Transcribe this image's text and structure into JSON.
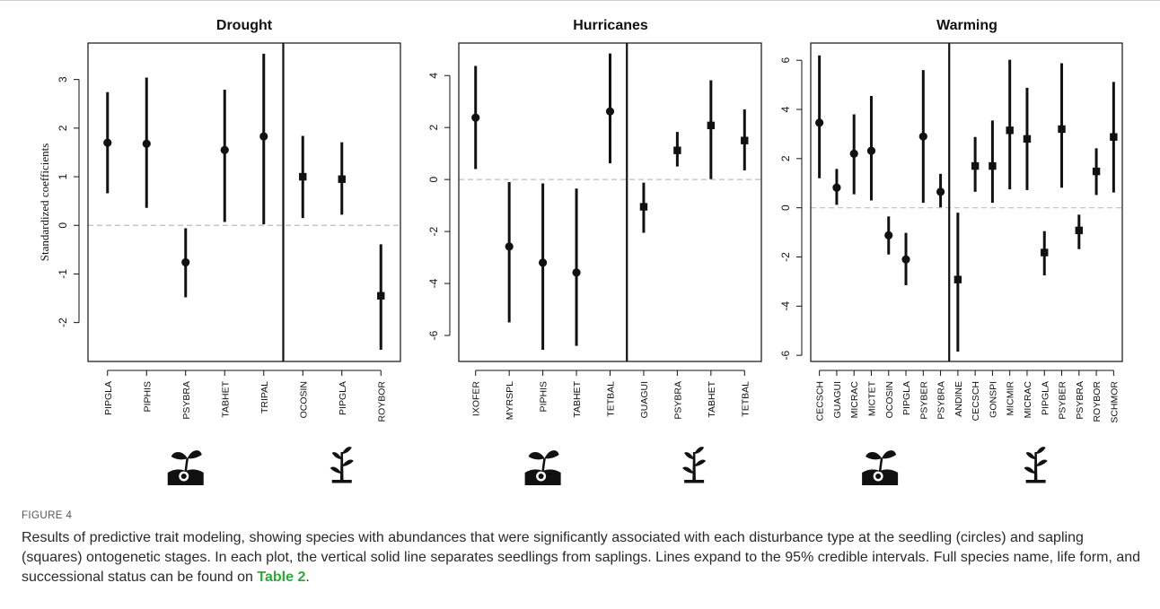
{
  "figure": {
    "label": "FIGURE 4",
    "caption_parts": [
      "Results of predictive trait modeling, showing species with abundances that were significantly associated with each disturbance type at the seedling (circles) and sapling (squares) ontogenetic stages. In each plot, the vertical solid line separates seedlings from saplings. Lines expand to the 95% credible intervals. Full species name, life form, and successional status can be found on ",
      "Table 2",
      "."
    ]
  },
  "icons": {
    "seedling": "seedling-icon",
    "sapling": "sapling-icon"
  },
  "colors": {
    "mark": "#111111",
    "zero_line": "#bdbdbd",
    "link": "#2eaa3a"
  },
  "chart_data": [
    {
      "type": "scatter",
      "title": "Drought",
      "ylabel": "Standardized coefficients",
      "ylim": [
        -2.8,
        3.75
      ],
      "yticks": [
        -2,
        -1,
        0,
        1,
        2,
        3
      ],
      "categories": [
        "PIPGLA",
        "PIPHIS",
        "PSYBRA",
        "TABHET",
        "TRIPAL",
        "OCOSIN",
        "PIPGLA",
        "ROYBOR"
      ],
      "separator_after": 5,
      "series": [
        {
          "stage": "seedling",
          "marker": "circle",
          "indices": [
            0,
            1,
            2,
            3,
            4
          ],
          "values": [
            1.7,
            1.68,
            -0.76,
            1.55,
            1.83
          ],
          "lower": [
            0.66,
            0.36,
            -1.48,
            0.07,
            0.02
          ],
          "upper": [
            2.74,
            3.04,
            -0.06,
            2.79,
            3.53
          ]
        },
        {
          "stage": "sapling",
          "marker": "square",
          "indices": [
            5,
            6,
            7
          ],
          "values": [
            1.0,
            0.95,
            -1.45
          ],
          "lower": [
            0.15,
            0.22,
            -2.56
          ],
          "upper": [
            1.84,
            1.71,
            -0.39
          ]
        }
      ]
    },
    {
      "type": "scatter",
      "title": "Hurricanes",
      "ylabel": "",
      "ylim": [
        -7.0,
        5.25
      ],
      "yticks": [
        -6,
        -4,
        -2,
        0,
        2,
        4
      ],
      "categories": [
        "IXOFER",
        "MYRSPL",
        "PIPHIS",
        "TABHET",
        "TETBAL",
        "GUAGUI",
        "PSYBRA",
        "TABHET",
        "TETBAL"
      ],
      "separator_after": 5,
      "series": [
        {
          "stage": "seedling",
          "marker": "circle",
          "indices": [
            0,
            1,
            2,
            3,
            4
          ],
          "values": [
            2.38,
            -2.58,
            -3.2,
            -3.58,
            2.62
          ],
          "lower": [
            0.4,
            -5.5,
            -6.55,
            -6.4,
            0.62
          ],
          "upper": [
            4.37,
            -0.1,
            -0.15,
            -0.35,
            4.85
          ]
        },
        {
          "stage": "sapling",
          "marker": "square",
          "indices": [
            5,
            6,
            7,
            8
          ],
          "values": [
            -1.05,
            1.12,
            2.08,
            1.5
          ],
          "lower": [
            -2.05,
            0.5,
            0.02,
            0.35
          ],
          "upper": [
            -0.12,
            1.83,
            3.82,
            2.7
          ]
        }
      ]
    },
    {
      "type": "scatter",
      "title": "Warming",
      "ylabel": "",
      "ylim": [
        -6.25,
        6.7
      ],
      "yticks": [
        -6,
        -4,
        -2,
        0,
        2,
        4,
        6
      ],
      "categories": [
        "CECSCH",
        "GUAGUI",
        "MICRAC",
        "MICTET",
        "OCOSIN",
        "PIPGLA",
        "PSYBER",
        "PSYBRA",
        "ANDINE",
        "CECSCH",
        "GONSPI",
        "MICMIR",
        "MICRAC",
        "PIPGLA",
        "PSYBER",
        "PSYBRA",
        "ROYBOR",
        "SCHMOR"
      ],
      "separator_after": 8,
      "series": [
        {
          "stage": "seedling",
          "marker": "circle",
          "indices": [
            0,
            1,
            2,
            3,
            4,
            5,
            6,
            7
          ],
          "values": [
            3.46,
            0.82,
            2.2,
            2.32,
            -1.12,
            -2.1,
            2.9,
            0.65
          ],
          "lower": [
            1.2,
            0.12,
            0.55,
            0.3,
            -1.9,
            -3.15,
            0.2,
            0.02
          ],
          "upper": [
            6.2,
            1.58,
            3.8,
            4.55,
            -0.35,
            -1.02,
            5.6,
            1.38
          ]
        },
        {
          "stage": "sapling",
          "marker": "square",
          "indices": [
            8,
            9,
            10,
            11,
            12,
            13,
            14,
            15,
            16,
            17
          ],
          "values": [
            -2.92,
            1.7,
            1.7,
            3.15,
            2.8,
            -1.82,
            3.2,
            -0.92,
            1.48,
            2.88
          ],
          "lower": [
            -5.85,
            0.65,
            0.2,
            0.75,
            0.72,
            -2.75,
            0.82,
            -1.68,
            0.52,
            0.62
          ],
          "upper": [
            -0.2,
            2.88,
            3.55,
            6.02,
            4.88,
            -0.95,
            5.88,
            -0.28,
            2.42,
            5.12
          ]
        }
      ]
    }
  ]
}
